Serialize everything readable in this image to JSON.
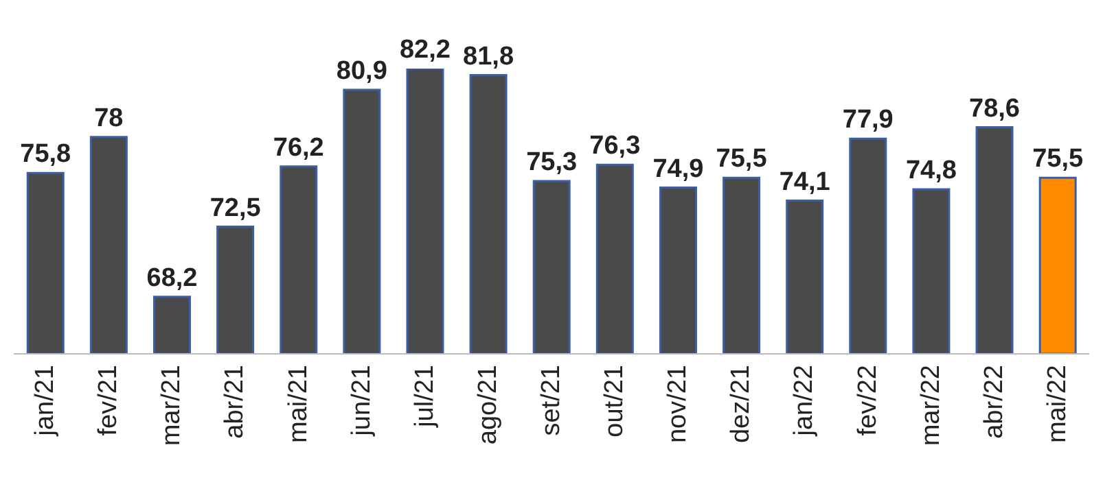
{
  "chart_data": {
    "type": "bar",
    "categories": [
      "jan/21",
      "fev/21",
      "mar/21",
      "abr/21",
      "mai/21",
      "jun/21",
      "jul/21",
      "ago/21",
      "set/21",
      "out/21",
      "nov/21",
      "dez/21",
      "jan/22",
      "fev/22",
      "mar/22",
      "abr/22",
      "mai/22"
    ],
    "values": [
      75.8,
      78,
      68.2,
      72.5,
      76.2,
      80.9,
      82.2,
      81.8,
      75.3,
      76.3,
      74.9,
      75.5,
      74.1,
      77.9,
      74.8,
      78.6,
      75.5
    ],
    "value_labels": [
      "75,8",
      "78",
      "68,2",
      "72,5",
      "76,2",
      "80,9",
      "82,2",
      "81,8",
      "75,3",
      "76,3",
      "74,9",
      "75,5",
      "74,1",
      "77,9",
      "74,8",
      "78,6",
      "75,5"
    ],
    "colors": [
      "#4a4a4a",
      "#4a4a4a",
      "#4a4a4a",
      "#4a4a4a",
      "#4a4a4a",
      "#4a4a4a",
      "#4a4a4a",
      "#4a4a4a",
      "#4a4a4a",
      "#4a4a4a",
      "#4a4a4a",
      "#4a4a4a",
      "#4a4a4a",
      "#4a4a4a",
      "#4a4a4a",
      "#4a4a4a",
      "#ff8c00"
    ],
    "ylim": [
      64.7,
      82.2
    ],
    "tick_labels": "x"
  }
}
